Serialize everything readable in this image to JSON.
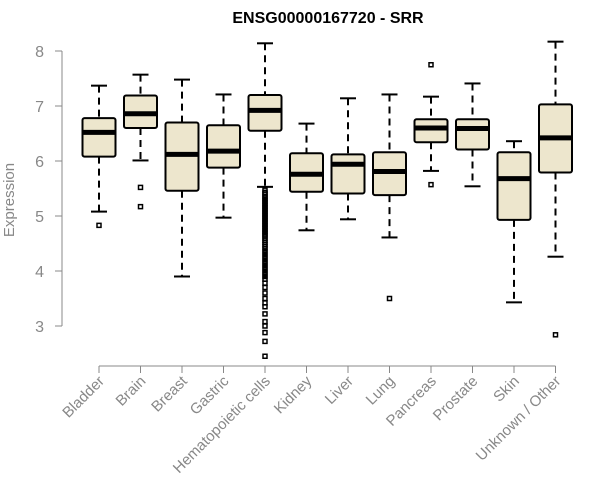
{
  "chart_data": {
    "type": "boxplot",
    "title": "ENSG00000167720 - SRR",
    "xlabel": "",
    "ylabel": "Expression",
    "ylim": [
      2.3,
      8.3
    ],
    "yticks": [
      3,
      4,
      5,
      6,
      7,
      8
    ],
    "categories": [
      "Bladder",
      "Brain",
      "Breast",
      "Gastric",
      "Hematopoietic cells",
      "Kidney",
      "Liver",
      "Lung",
      "Pancreas",
      "Prostate",
      "Skin",
      "Unknown / Other"
    ],
    "boxes": [
      {
        "name": "Bladder",
        "whisker_low": 5.08,
        "q1": 6.08,
        "median": 6.52,
        "q3": 6.78,
        "whisker_high": 7.37,
        "outliers": [
          4.83
        ]
      },
      {
        "name": "Brain",
        "whisker_low": 6.01,
        "q1": 6.6,
        "median": 6.86,
        "q3": 7.19,
        "whisker_high": 7.57,
        "outliers": [
          5.52,
          5.17
        ]
      },
      {
        "name": "Breast",
        "whisker_low": 3.9,
        "q1": 5.46,
        "median": 6.12,
        "q3": 6.7,
        "whisker_high": 7.48,
        "outliers": []
      },
      {
        "name": "Gastric",
        "whisker_low": 4.97,
        "q1": 5.88,
        "median": 6.18,
        "q3": 6.65,
        "whisker_high": 7.21,
        "outliers": []
      },
      {
        "name": "Hematopoietic cells",
        "whisker_low": 5.53,
        "q1": 6.55,
        "median": 6.92,
        "q3": 7.2,
        "whisker_high": 8.14,
        "outliers": [
          5.47,
          5.43,
          5.4,
          5.36,
          5.33,
          5.3,
          5.27,
          5.24,
          5.21,
          5.18,
          5.15,
          5.12,
          5.09,
          5.06,
          5.03,
          5.0,
          4.97,
          4.94,
          4.91,
          4.88,
          4.85,
          4.82,
          4.79,
          4.76,
          4.73,
          4.7,
          4.67,
          4.64,
          4.6,
          4.56,
          4.52,
          4.48,
          4.44,
          4.4,
          4.35,
          4.3,
          4.25,
          4.2,
          4.15,
          4.1,
          4.05,
          4.0,
          3.95,
          3.9,
          3.85,
          3.78,
          3.7,
          3.6,
          3.5,
          3.42,
          3.35,
          3.22,
          3.08,
          3.0,
          2.88,
          2.72,
          2.45
        ]
      },
      {
        "name": "Kidney",
        "whisker_low": 4.74,
        "q1": 5.44,
        "median": 5.76,
        "q3": 6.14,
        "whisker_high": 6.68,
        "outliers": []
      },
      {
        "name": "Liver",
        "whisker_low": 4.94,
        "q1": 5.41,
        "median": 5.94,
        "q3": 6.12,
        "whisker_high": 7.14,
        "outliers": []
      },
      {
        "name": "Lung",
        "whisker_low": 4.61,
        "q1": 5.38,
        "median": 5.81,
        "q3": 6.16,
        "whisker_high": 7.21,
        "outliers": [
          3.5
        ]
      },
      {
        "name": "Pancreas",
        "whisker_low": 5.82,
        "q1": 6.34,
        "median": 6.6,
        "q3": 6.76,
        "whisker_high": 7.17,
        "outliers": [
          7.75,
          5.57
        ]
      },
      {
        "name": "Prostate",
        "whisker_low": 5.54,
        "q1": 6.21,
        "median": 6.59,
        "q3": 6.76,
        "whisker_high": 7.41,
        "outliers": []
      },
      {
        "name": "Skin",
        "whisker_low": 3.43,
        "q1": 4.93,
        "median": 5.68,
        "q3": 6.16,
        "whisker_high": 6.36,
        "outliers": []
      },
      {
        "name": "Unknown / Other",
        "whisker_low": 4.26,
        "q1": 5.79,
        "median": 6.42,
        "q3": 7.03,
        "whisker_high": 8.17,
        "outliers": [
          2.84
        ]
      }
    ]
  }
}
